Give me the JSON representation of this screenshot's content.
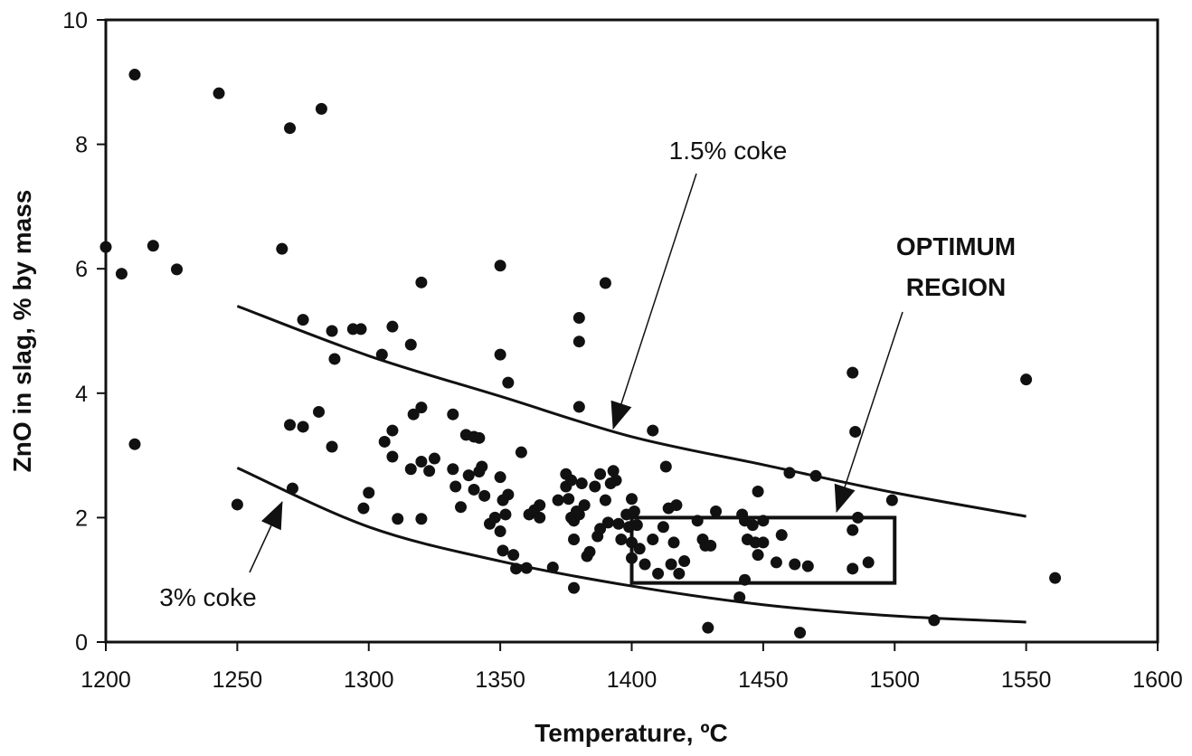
{
  "chart_data": {
    "type": "scatter",
    "xlabel": "Temperature, ºC",
    "ylabel": "ZnO in slag, % by mass",
    "xlim": [
      1200,
      1600
    ],
    "xticks": [
      1200,
      1250,
      1300,
      1350,
      1400,
      1450,
      1500,
      1550,
      1600
    ],
    "ylim": [
      0,
      10
    ],
    "yticks": [
      0,
      2,
      4,
      6,
      8,
      10
    ],
    "grid": false,
    "color": "#111111",
    "x": [
      1200,
      1206,
      1211,
      1218,
      1227,
      1211,
      1243,
      1270,
      1282,
      1267,
      1250,
      1271,
      1275,
      1270,
      1275,
      1286,
      1294,
      1297,
      1287,
      1286,
      1281,
      1298,
      1300,
      1305,
      1309,
      1316,
      1320,
      1306,
      1309,
      1309,
      1317,
      1320,
      1316,
      1320,
      1323,
      1325,
      1311,
      1320,
      1332,
      1337,
      1340,
      1342,
      1332,
      1333,
      1335,
      1338,
      1340,
      1342,
      1343,
      1344,
      1346,
      1348,
      1350,
      1350,
      1353,
      1350,
      1351,
      1352,
      1353,
      1350,
      1351,
      1355,
      1356,
      1360,
      1358,
      1361,
      1363,
      1365,
      1365,
      1370,
      1372,
      1375,
      1375,
      1376,
      1377,
      1377,
      1378,
      1379,
      1380,
      1378,
      1378,
      1380,
      1380,
      1380,
      1381,
      1382,
      1383,
      1384,
      1386,
      1387,
      1388,
      1388,
      1390,
      1390,
      1391,
      1392,
      1393,
      1394,
      1395,
      1396,
      1398,
      1399,
      1400,
      1400,
      1400,
      1401,
      1402,
      1403,
      1405,
      1408,
      1408,
      1410,
      1412,
      1413,
      1414,
      1415,
      1416,
      1417,
      1418,
      1420,
      1425,
      1427,
      1428,
      1429,
      1430,
      1432,
      1441,
      1442,
      1443,
      1443,
      1444,
      1446,
      1447,
      1448,
      1448,
      1450,
      1450,
      1455,
      1457,
      1460,
      1462,
      1464,
      1467,
      1470,
      1484,
      1484,
      1484,
      1485,
      1486,
      1490,
      1499,
      1515,
      1550,
      1561
    ],
    "values": [
      6.35,
      5.92,
      9.12,
      6.37,
      5.99,
      3.18,
      8.82,
      8.26,
      8.57,
      6.32,
      2.21,
      2.47,
      5.18,
      3.49,
      3.46,
      5.0,
      5.03,
      5.03,
      4.55,
      3.14,
      3.7,
      2.15,
      2.4,
      4.62,
      5.07,
      4.78,
      5.78,
      3.22,
      3.4,
      2.98,
      3.66,
      3.77,
      2.78,
      2.9,
      2.75,
      2.95,
      1.98,
      1.98,
      3.66,
      3.33,
      3.3,
      3.28,
      2.78,
      2.5,
      2.17,
      2.68,
      2.45,
      2.74,
      2.82,
      2.35,
      1.9,
      2.0,
      6.05,
      4.62,
      4.17,
      2.65,
      2.28,
      2.05,
      2.37,
      1.78,
      1.47,
      1.4,
      1.18,
      1.19,
      3.05,
      2.05,
      2.12,
      2.0,
      2.2,
      1.2,
      2.28,
      2.7,
      2.5,
      2.3,
      2.0,
      2.6,
      1.95,
      2.1,
      2.05,
      1.65,
      0.87,
      5.21,
      4.83,
      3.78,
      2.55,
      2.2,
      1.38,
      1.45,
      2.5,
      1.7,
      2.7,
      1.82,
      5.77,
      2.28,
      1.92,
      2.55,
      2.75,
      2.6,
      1.9,
      1.65,
      2.05,
      1.85,
      2.3,
      1.6,
      1.35,
      2.1,
      1.88,
      1.5,
      1.25,
      3.4,
      1.65,
      1.1,
      1.85,
      2.82,
      2.15,
      1.25,
      1.6,
      2.2,
      1.1,
      1.3,
      1.95,
      1.65,
      1.55,
      0.23,
      1.55,
      2.1,
      0.72,
      2.05,
      1.0,
      1.95,
      1.65,
      1.88,
      1.6,
      2.42,
      1.4,
      1.95,
      1.6,
      1.28,
      1.72,
      2.72,
      1.25,
      0.15,
      1.22,
      2.67,
      4.33,
      1.8,
      1.18,
      3.38,
      2.0,
      1.28,
      2.28,
      0.35,
      4.22,
      1.03
    ],
    "curves": [
      {
        "label": "1.5% coke",
        "x": [
          1250,
          1300,
          1350,
          1400,
          1450,
          1500,
          1550
        ],
        "values": [
          5.4,
          4.6,
          3.95,
          3.3,
          2.85,
          2.4,
          2.02
        ]
      },
      {
        "label": "3% coke",
        "x": [
          1250,
          1300,
          1350,
          1400,
          1450,
          1500,
          1550
        ],
        "values": [
          2.8,
          1.85,
          1.3,
          0.9,
          0.6,
          0.42,
          0.32
        ]
      }
    ],
    "region": {
      "label": [
        "OPTIMUM",
        "REGION"
      ],
      "xlim": [
        1400,
        1500
      ],
      "ylim": [
        0.95,
        2.0
      ]
    }
  }
}
